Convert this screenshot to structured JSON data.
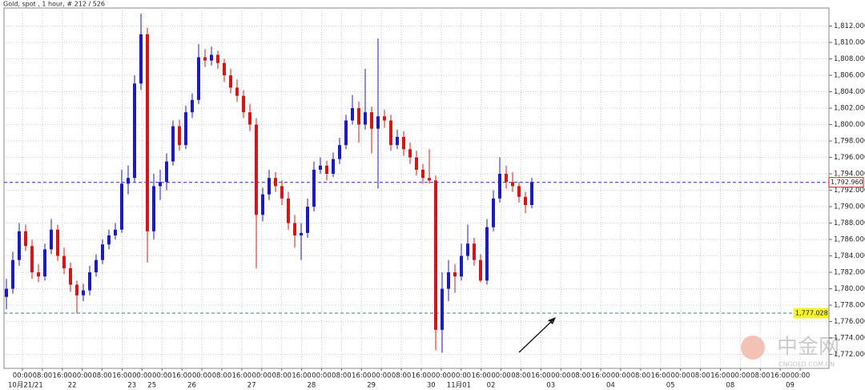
{
  "chart_data": {
    "type": "candlestick",
    "title": "Gold, spot , 1 hour, # 212 / 526",
    "up_color": "#1c1cb8",
    "down_color": "#d01818",
    "ylim": [
      1770.3,
      1814.2
    ],
    "yticks": [
      {
        "value": 1772,
        "label": "1,772.000"
      },
      {
        "value": 1774,
        "label": "1,774.000"
      },
      {
        "value": 1776,
        "label": "1,776.000"
      },
      {
        "value": 1778,
        "label": "1,778.000"
      },
      {
        "value": 1780,
        "label": "1,780.000"
      },
      {
        "value": 1782,
        "label": "1,782.000"
      },
      {
        "value": 1784,
        "label": "1,784.000"
      },
      {
        "value": 1786,
        "label": "1,786.000"
      },
      {
        "value": 1788,
        "label": "1,788.000"
      },
      {
        "value": 1790,
        "label": "1,790.000"
      },
      {
        "value": 1792,
        "label": "1,792.000"
      },
      {
        "value": 1794,
        "label": "1,794.000"
      },
      {
        "value": 1796,
        "label": "1,796.000"
      },
      {
        "value": 1798,
        "label": "1,798.000"
      },
      {
        "value": 1800,
        "label": "1,800.000"
      },
      {
        "value": 1802,
        "label": "1,802.000"
      },
      {
        "value": 1804,
        "label": "1,804.000"
      },
      {
        "value": 1806,
        "label": "1,806.000"
      },
      {
        "value": 1808,
        "label": "1,808.000"
      },
      {
        "value": 1810,
        "label": "1,810.000"
      },
      {
        "value": 1812,
        "label": "1,812.000"
      }
    ],
    "grid": true,
    "x_ticks": [
      {
        "time": "00:00",
        "date": "10月21/21"
      },
      {
        "time": "08:00",
        "date": null
      },
      {
        "time": "16:00",
        "date": null
      },
      {
        "time": "00:00",
        "date": "22"
      },
      {
        "time": "08:00",
        "date": null
      },
      {
        "time": "16:00",
        "date": null
      },
      {
        "time": "00:00",
        "date": "23"
      },
      {
        "time": "00:00",
        "date": "25"
      },
      {
        "time": "16:00",
        "date": null
      },
      {
        "time": "00:00",
        "date": "26"
      },
      {
        "time": "08:00",
        "date": null
      },
      {
        "time": "16:00",
        "date": null
      },
      {
        "time": "00:00",
        "date": "27"
      },
      {
        "time": "08:00",
        "date": null
      },
      {
        "time": "16:00",
        "date": null
      },
      {
        "time": "00:00",
        "date": "28"
      },
      {
        "time": "08:00",
        "date": null
      },
      {
        "time": "16:00",
        "date": null
      },
      {
        "time": "00:00",
        "date": "29"
      },
      {
        "time": "08:00",
        "date": null
      },
      {
        "time": "16:00",
        "date": null
      },
      {
        "time": "00:00",
        "date": "30"
      },
      {
        "time": "00:00",
        "date": "11月01"
      },
      {
        "time": "16:00",
        "date": null
      },
      {
        "time": "00:00",
        "date": "02"
      },
      {
        "time": "08:00",
        "date": null
      },
      {
        "time": "16:00",
        "date": null
      },
      {
        "time": "00:00",
        "date": "03"
      },
      {
        "time": "08:00",
        "date": null
      },
      {
        "time": "16:00",
        "date": null
      },
      {
        "time": "00:00",
        "date": "04"
      },
      {
        "time": "08:00",
        "date": null
      },
      {
        "time": "16:00",
        "date": null
      },
      {
        "time": "00:00",
        "date": "05"
      },
      {
        "time": "08:00",
        "date": null
      },
      {
        "time": "16:00",
        "date": null
      },
      {
        "time": "00:00",
        "date": "08"
      },
      {
        "time": "08:00",
        "date": null
      },
      {
        "time": "16:00",
        "date": null
      },
      {
        "time": "00:00",
        "date": "09"
      }
    ],
    "candles": [
      {
        "open": 1779.0,
        "high": 1781.2,
        "low": 1777.5,
        "close": 1780.0
      },
      {
        "open": 1780.0,
        "high": 1784.5,
        "low": 1779.4,
        "close": 1783.5
      },
      {
        "open": 1783.5,
        "high": 1788.0,
        "low": 1782.8,
        "close": 1787.0
      },
      {
        "open": 1787.0,
        "high": 1787.8,
        "low": 1784.6,
        "close": 1785.2
      },
      {
        "open": 1785.2,
        "high": 1786.0,
        "low": 1781.2,
        "close": 1782.0
      },
      {
        "open": 1782.0,
        "high": 1783.0,
        "low": 1780.8,
        "close": 1781.5
      },
      {
        "open": 1781.5,
        "high": 1785.5,
        "low": 1781.0,
        "close": 1784.8
      },
      {
        "open": 1784.8,
        "high": 1788.5,
        "low": 1784.2,
        "close": 1787.2
      },
      {
        "open": 1787.2,
        "high": 1787.8,
        "low": 1783.4,
        "close": 1784.0
      },
      {
        "open": 1784.0,
        "high": 1785.0,
        "low": 1781.8,
        "close": 1782.5
      },
      {
        "open": 1782.5,
        "high": 1783.2,
        "low": 1779.6,
        "close": 1780.5
      },
      {
        "open": 1780.5,
        "high": 1781.0,
        "low": 1777.0,
        "close": 1779.2
      },
      {
        "open": 1779.2,
        "high": 1780.6,
        "low": 1778.5,
        "close": 1779.8
      },
      {
        "open": 1779.8,
        "high": 1782.8,
        "low": 1779.2,
        "close": 1782.0
      },
      {
        "open": 1782.0,
        "high": 1784.2,
        "low": 1781.5,
        "close": 1783.5
      },
      {
        "open": 1783.5,
        "high": 1786.0,
        "low": 1783.0,
        "close": 1785.4
      },
      {
        "open": 1785.4,
        "high": 1787.2,
        "low": 1784.8,
        "close": 1786.5
      },
      {
        "open": 1786.5,
        "high": 1788.0,
        "low": 1786.0,
        "close": 1787.2
      },
      {
        "open": 1787.2,
        "high": 1794.5,
        "low": 1786.8,
        "close": 1792.8
      },
      {
        "open": 1792.8,
        "high": 1795.0,
        "low": 1791.5,
        "close": 1793.5
      },
      {
        "open": 1793.5,
        "high": 1806.0,
        "low": 1793.0,
        "close": 1805.0
      },
      {
        "open": 1805.0,
        "high": 1813.5,
        "low": 1804.2,
        "close": 1811.0
      },
      {
        "open": 1811.0,
        "high": 1811.8,
        "low": 1783.2,
        "close": 1787.0
      },
      {
        "open": 1787.0,
        "high": 1794.0,
        "low": 1786.0,
        "close": 1792.5
      },
      {
        "open": 1792.5,
        "high": 1794.5,
        "low": 1790.8,
        "close": 1793.0
      },
      {
        "open": 1793.0,
        "high": 1796.5,
        "low": 1792.0,
        "close": 1795.5
      },
      {
        "open": 1795.5,
        "high": 1800.5,
        "low": 1795.0,
        "close": 1799.8
      },
      {
        "open": 1799.8,
        "high": 1800.6,
        "low": 1796.8,
        "close": 1797.5
      },
      {
        "open": 1797.5,
        "high": 1802.3,
        "low": 1797.0,
        "close": 1801.5
      },
      {
        "open": 1801.5,
        "high": 1803.8,
        "low": 1800.8,
        "close": 1803.0
      },
      {
        "open": 1803.0,
        "high": 1809.8,
        "low": 1802.5,
        "close": 1808.2
      },
      {
        "open": 1808.2,
        "high": 1809.2,
        "low": 1807.0,
        "close": 1807.8
      },
      {
        "open": 1807.8,
        "high": 1809.5,
        "low": 1807.2,
        "close": 1808.5
      },
      {
        "open": 1808.5,
        "high": 1809.0,
        "low": 1806.8,
        "close": 1807.5
      },
      {
        "open": 1807.5,
        "high": 1808.0,
        "low": 1805.2,
        "close": 1806.0
      },
      {
        "open": 1806.0,
        "high": 1806.8,
        "low": 1803.8,
        "close": 1804.5
      },
      {
        "open": 1804.5,
        "high": 1805.5,
        "low": 1802.8,
        "close": 1803.5
      },
      {
        "open": 1803.5,
        "high": 1804.2,
        "low": 1800.8,
        "close": 1801.5
      },
      {
        "open": 1801.5,
        "high": 1802.5,
        "low": 1799.2,
        "close": 1800.0
      },
      {
        "open": 1800.0,
        "high": 1800.8,
        "low": 1782.5,
        "close": 1789.0
      },
      {
        "open": 1789.0,
        "high": 1792.3,
        "low": 1788.2,
        "close": 1791.5
      },
      {
        "open": 1791.5,
        "high": 1794.5,
        "low": 1790.8,
        "close": 1793.5
      },
      {
        "open": 1793.5,
        "high": 1794.2,
        "low": 1791.8,
        "close": 1792.5
      },
      {
        "open": 1792.5,
        "high": 1793.2,
        "low": 1790.2,
        "close": 1791.0
      },
      {
        "open": 1791.0,
        "high": 1791.8,
        "low": 1787.2,
        "close": 1788.0
      },
      {
        "open": 1788.0,
        "high": 1789.0,
        "low": 1785.0,
        "close": 1786.5
      },
      {
        "open": 1786.5,
        "high": 1788.0,
        "low": 1783.5,
        "close": 1786.8
      },
      {
        "open": 1786.8,
        "high": 1791.0,
        "low": 1786.2,
        "close": 1790.0
      },
      {
        "open": 1790.0,
        "high": 1795.5,
        "low": 1789.4,
        "close": 1794.5
      },
      {
        "open": 1794.5,
        "high": 1796.0,
        "low": 1794.0,
        "close": 1795.0
      },
      {
        "open": 1795.0,
        "high": 1795.6,
        "low": 1793.2,
        "close": 1794.0
      },
      {
        "open": 1794.0,
        "high": 1796.6,
        "low": 1793.6,
        "close": 1795.8
      },
      {
        "open": 1795.8,
        "high": 1798.4,
        "low": 1795.2,
        "close": 1797.5
      },
      {
        "open": 1797.5,
        "high": 1801.2,
        "low": 1797.0,
        "close": 1800.5
      },
      {
        "open": 1800.5,
        "high": 1803.6,
        "low": 1800.0,
        "close": 1802.0
      },
      {
        "open": 1802.0,
        "high": 1802.8,
        "low": 1797.8,
        "close": 1800.0
      },
      {
        "open": 1800.0,
        "high": 1806.8,
        "low": 1799.4,
        "close": 1801.5
      },
      {
        "open": 1801.5,
        "high": 1802.2,
        "low": 1796.5,
        "close": 1799.5
      },
      {
        "open": 1799.5,
        "high": 1810.5,
        "low": 1792.2,
        "close": 1801.0
      },
      {
        "open": 1801.0,
        "high": 1801.8,
        "low": 1799.6,
        "close": 1800.5
      },
      {
        "open": 1800.5,
        "high": 1801.2,
        "low": 1796.8,
        "close": 1797.5
      },
      {
        "open": 1797.5,
        "high": 1799.4,
        "low": 1797.0,
        "close": 1798.5
      },
      {
        "open": 1798.5,
        "high": 1799.2,
        "low": 1796.2,
        "close": 1797.0
      },
      {
        "open": 1797.0,
        "high": 1797.8,
        "low": 1795.2,
        "close": 1796.0
      },
      {
        "open": 1796.0,
        "high": 1796.8,
        "low": 1793.8,
        "close": 1794.5
      },
      {
        "open": 1794.5,
        "high": 1795.2,
        "low": 1792.8,
        "close": 1793.5
      },
      {
        "open": 1793.5,
        "high": 1797.0,
        "low": 1792.8,
        "close": 1793.2
      },
      {
        "open": 1793.2,
        "high": 1793.8,
        "low": 1772.5,
        "close": 1775.0
      },
      {
        "open": 1775.0,
        "high": 1782.0,
        "low": 1772.2,
        "close": 1780.0
      },
      {
        "open": 1780.0,
        "high": 1783.5,
        "low": 1778.5,
        "close": 1782.0
      },
      {
        "open": 1782.0,
        "high": 1783.0,
        "low": 1779.5,
        "close": 1781.5
      },
      {
        "open": 1781.5,
        "high": 1785.5,
        "low": 1781.0,
        "close": 1784.0
      },
      {
        "open": 1784.0,
        "high": 1787.8,
        "low": 1783.5,
        "close": 1785.5
      },
      {
        "open": 1785.5,
        "high": 1786.2,
        "low": 1782.8,
        "close": 1783.5
      },
      {
        "open": 1783.5,
        "high": 1784.2,
        "low": 1780.8,
        "close": 1781.0
      },
      {
        "open": 1781.0,
        "high": 1788.5,
        "low": 1780.5,
        "close": 1787.5
      },
      {
        "open": 1787.5,
        "high": 1792.0,
        "low": 1787.0,
        "close": 1791.0
      },
      {
        "open": 1791.0,
        "high": 1796.0,
        "low": 1790.5,
        "close": 1794.0
      },
      {
        "open": 1794.0,
        "high": 1795.0,
        "low": 1792.2,
        "close": 1793.0
      },
      {
        "open": 1793.0,
        "high": 1794.2,
        "low": 1791.8,
        "close": 1792.5
      },
      {
        "open": 1792.5,
        "high": 1793.0,
        "low": 1790.5,
        "close": 1791.2
      },
      {
        "open": 1791.2,
        "high": 1791.8,
        "low": 1789.2,
        "close": 1790.2
      },
      {
        "open": 1790.2,
        "high": 1793.5,
        "low": 1789.8,
        "close": 1793.0
      }
    ],
    "price_lines": [
      {
        "value": 1792.96,
        "label": "1,792.960",
        "color": "#2a2ad0",
        "label_fill": "#ffffff",
        "label_stroke": "#d01818"
      },
      {
        "value": 1777.028,
        "label": "1,777.028",
        "color": "#1a8c8c",
        "label_fill": "#f4f42a",
        "label_stroke": "#f4f42a"
      }
    ],
    "watermark": {
      "logo": "中金网",
      "site": "CNGOLD.COM.CN"
    }
  }
}
